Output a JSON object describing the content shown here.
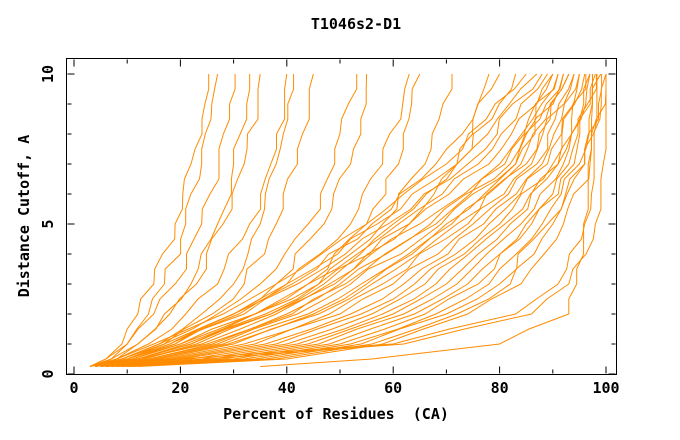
{
  "colors": {
    "curve": "#ff8c00",
    "axis": "#000000",
    "background": "#ffffff"
  },
  "chart_data": {
    "type": "line",
    "title": "T1046s2-D1",
    "xlabel": "Percent of Residues  (CA)",
    "ylabel": "Distance Cutoff, A",
    "x_axis": {
      "major_ticks": [
        0,
        20,
        40,
        60,
        80,
        100
      ],
      "major_labels": [
        "0",
        "20",
        "40",
        "60",
        "80",
        "100"
      ],
      "minor_ticks": [
        10,
        30,
        50,
        70,
        90
      ],
      "range": [
        -1.5,
        102
      ]
    },
    "y_axis": {
      "major_ticks": [
        0,
        5,
        10
      ],
      "major_labels": [
        "0",
        "5",
        "10"
      ],
      "minor_ticks": [
        1,
        2,
        3,
        4,
        6,
        7,
        8,
        9
      ],
      "range": [
        0,
        10.5
      ]
    },
    "grid": false,
    "legend": "none",
    "series_note": "each series = percent of CA residues under distance cutoff; percents listed at the anchor cutoffs below; cutoff plotted on y, percent on x",
    "cutoffs": [
      0.25,
      0.5,
      1,
      2,
      3,
      5,
      7,
      10
    ],
    "series": [
      [
        3,
        6,
        9,
        12,
        15,
        19,
        22,
        25
      ],
      [
        4,
        7,
        10,
        14,
        17,
        21,
        24,
        27
      ],
      [
        3,
        6,
        10,
        15,
        19,
        24,
        27,
        30
      ],
      [
        4,
        8,
        12,
        17,
        22,
        27,
        30,
        33
      ],
      [
        3,
        7,
        12,
        18,
        23,
        28,
        32,
        35
      ],
      [
        4,
        8,
        14,
        21,
        27,
        33,
        37,
        40
      ],
      [
        3,
        9,
        16,
        24,
        30,
        35,
        38,
        41
      ],
      [
        4,
        10,
        17,
        26,
        32,
        38,
        42,
        45
      ],
      [
        4,
        9,
        16,
        27,
        35,
        44,
        49,
        53
      ],
      [
        5,
        11,
        19,
        30,
        38,
        47,
        52,
        55
      ],
      [
        4,
        10,
        18,
        30,
        40,
        52,
        58,
        63
      ],
      [
        5,
        12,
        21,
        34,
        44,
        55,
        61,
        65
      ],
      [
        4,
        11,
        20,
        34,
        46,
        58,
        66,
        71
      ],
      [
        5,
        12,
        22,
        37,
        49,
        63,
        72,
        78
      ],
      [
        4,
        10,
        19,
        31,
        41,
        56,
        68,
        80
      ],
      [
        5,
        13,
        23,
        37,
        47,
        60,
        72,
        83
      ],
      [
        3,
        8,
        15,
        28,
        38,
        55,
        70,
        85
      ],
      [
        3,
        9,
        17,
        30,
        40,
        57,
        72,
        87
      ],
      [
        4,
        10,
        18,
        32,
        42,
        59,
        74,
        88
      ],
      [
        4,
        11,
        20,
        34,
        44,
        61,
        76,
        89
      ],
      [
        5,
        12,
        22,
        36,
        46,
        63,
        78,
        90
      ],
      [
        5,
        13,
        24,
        38,
        48,
        65,
        80,
        91
      ],
      [
        4,
        12,
        25,
        40,
        50,
        67,
        82,
        92
      ],
      [
        5,
        14,
        27,
        42,
        52,
        69,
        83,
        92
      ],
      [
        6,
        15,
        28,
        44,
        54,
        71,
        84,
        93
      ],
      [
        5,
        16,
        30,
        46,
        56,
        72,
        85,
        93
      ],
      [
        6,
        17,
        32,
        48,
        58,
        74,
        86,
        94
      ],
      [
        6,
        18,
        34,
        50,
        60,
        75,
        87,
        94
      ],
      [
        7,
        19,
        36,
        52,
        62,
        77,
        88,
        95
      ],
      [
        6,
        20,
        38,
        54,
        64,
        78,
        89,
        95
      ],
      [
        7,
        22,
        40,
        56,
        66,
        80,
        90,
        96
      ],
      [
        7,
        24,
        42,
        58,
        68,
        81,
        91,
        96
      ],
      [
        8,
        26,
        44,
        60,
        70,
        82,
        91,
        97
      ],
      [
        8,
        28,
        46,
        62,
        72,
        84,
        92,
        97
      ],
      [
        9,
        30,
        48,
        64,
        74,
        85,
        93,
        98
      ],
      [
        9,
        32,
        50,
        66,
        76,
        86,
        94,
        98
      ],
      [
        10,
        34,
        52,
        68,
        78,
        88,
        95,
        99
      ],
      [
        10,
        36,
        54,
        70,
        80,
        89,
        96,
        99
      ],
      [
        11,
        38,
        56,
        72,
        82,
        90,
        96,
        100
      ],
      [
        12,
        40,
        58,
        74,
        84,
        92,
        97,
        100
      ],
      [
        6,
        14,
        26,
        41,
        51,
        68,
        81,
        91
      ],
      [
        5,
        15,
        29,
        45,
        55,
        70,
        83,
        90
      ],
      [
        5,
        20,
        60,
        83,
        91,
        96,
        97,
        98
      ],
      [
        35,
        56,
        80,
        93,
        94.5,
        95.5,
        96,
        97
      ],
      [
        6,
        25,
        62,
        86,
        93,
        98,
        99.5,
        100
      ]
    ]
  }
}
